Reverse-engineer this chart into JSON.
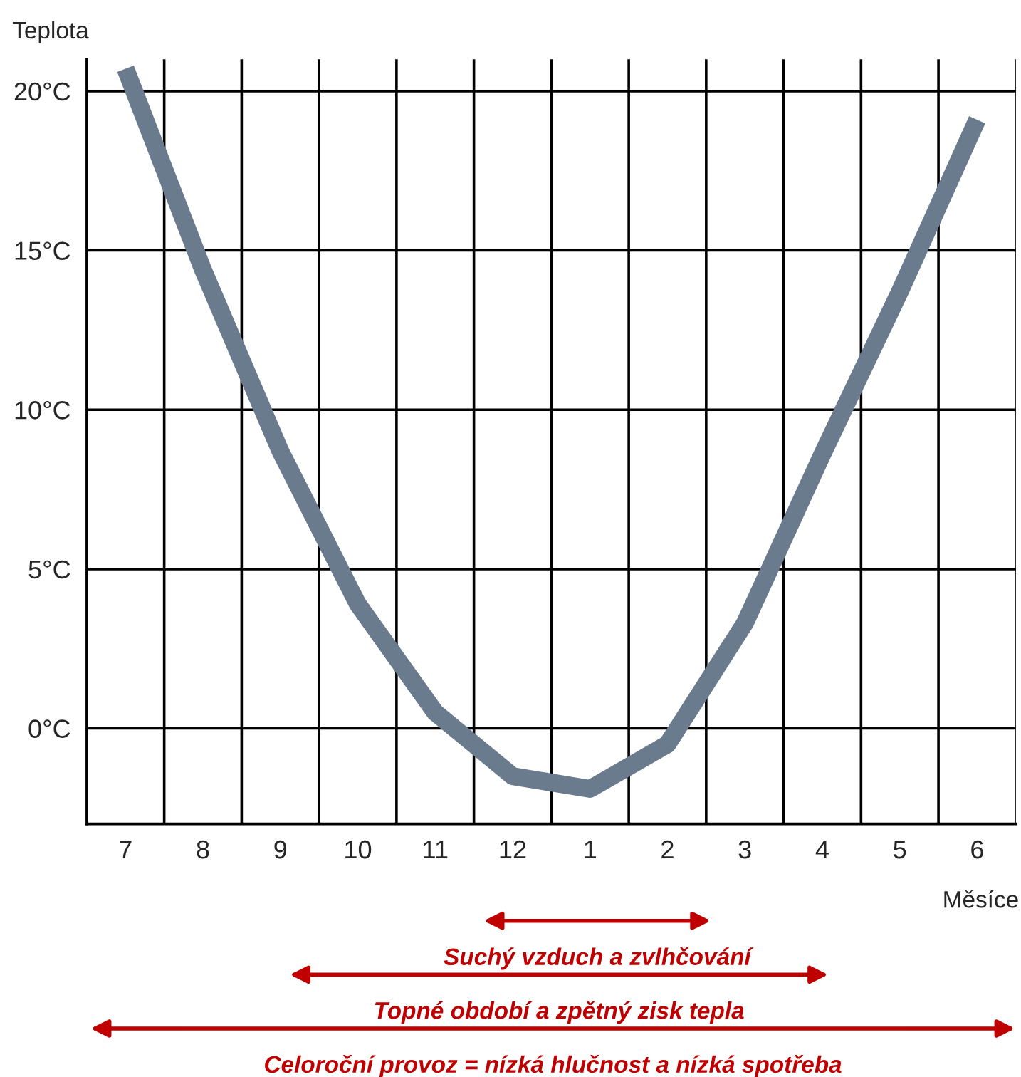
{
  "chart_data": {
    "type": "line",
    "ylabel": "Teplota",
    "xlabel": "Měsíce",
    "categories": [
      "7",
      "8",
      "9",
      "10",
      "11",
      "12",
      "1",
      "2",
      "3",
      "4",
      "5",
      "6"
    ],
    "series": [
      {
        "color": "#6b7b8e",
        "values": [
          20.7,
          14.4,
          8.7,
          3.9,
          0.5,
          -1.5,
          -1.9,
          -0.5,
          3.3,
          8.6,
          13.7,
          19.1
        ]
      }
    ],
    "ylim": [
      -3,
      21
    ],
    "yticks": [
      {
        "value": 0,
        "label": "0°C"
      },
      {
        "value": 5,
        "label": "5°C"
      },
      {
        "value": 10,
        "label": "10°C"
      },
      {
        "value": 15,
        "label": "15°C"
      },
      {
        "value": 20,
        "label": "20°C"
      }
    ],
    "grid": true,
    "annotations": [
      "Suchý vzduch a zvlhčování",
      "Topné období a zpětný zisk tepla",
      "Celoroční provoz = nízká hlučnost a nízká spotřeba"
    ]
  }
}
